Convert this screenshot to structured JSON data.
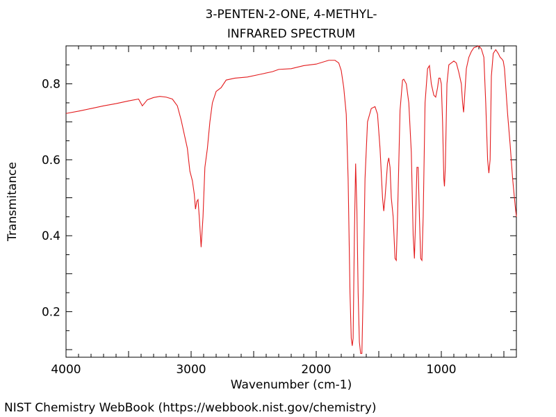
{
  "chart_data": {
    "type": "line",
    "title": "3-PENTEN-2-ONE, 4-METHYL-",
    "subtitle": "INFRARED SPECTRUM",
    "xlabel": "Wavenumber (cm-1)",
    "ylabel": "Transmitance",
    "xlim": [
      4000,
      400
    ],
    "ylim": [
      0.08,
      0.9
    ],
    "x_ticks": [
      4000,
      3000,
      2000,
      1000
    ],
    "y_ticks": [
      0.2,
      0.4,
      0.6,
      0.8
    ],
    "grid": false,
    "series": [
      {
        "color": "#e31a1c",
        "points": [
          [
            4000,
            0.722
          ],
          [
            3900,
            0.728
          ],
          [
            3800,
            0.735
          ],
          [
            3700,
            0.742
          ],
          [
            3600,
            0.748
          ],
          [
            3500,
            0.755
          ],
          [
            3420,
            0.76
          ],
          [
            3390,
            0.742
          ],
          [
            3350,
            0.758
          ],
          [
            3300,
            0.764
          ],
          [
            3250,
            0.767
          ],
          [
            3200,
            0.765
          ],
          [
            3150,
            0.76
          ],
          [
            3110,
            0.742
          ],
          [
            3080,
            0.705
          ],
          [
            3050,
            0.66
          ],
          [
            3030,
            0.63
          ],
          [
            3010,
            0.57
          ],
          [
            2990,
            0.545
          ],
          [
            2975,
            0.51
          ],
          [
            2965,
            0.47
          ],
          [
            2955,
            0.49
          ],
          [
            2945,
            0.495
          ],
          [
            2935,
            0.45
          ],
          [
            2920,
            0.37
          ],
          [
            2905,
            0.45
          ],
          [
            2890,
            0.58
          ],
          [
            2870,
            0.63
          ],
          [
            2850,
            0.7
          ],
          [
            2830,
            0.75
          ],
          [
            2800,
            0.78
          ],
          [
            2760,
            0.79
          ],
          [
            2720,
            0.81
          ],
          [
            2650,
            0.815
          ],
          [
            2550,
            0.818
          ],
          [
            2450,
            0.825
          ],
          [
            2350,
            0.832
          ],
          [
            2300,
            0.838
          ],
          [
            2200,
            0.84
          ],
          [
            2100,
            0.848
          ],
          [
            2000,
            0.852
          ],
          [
            1900,
            0.862
          ],
          [
            1850,
            0.862
          ],
          [
            1820,
            0.855
          ],
          [
            1800,
            0.835
          ],
          [
            1780,
            0.79
          ],
          [
            1760,
            0.72
          ],
          [
            1745,
            0.55
          ],
          [
            1730,
            0.25
          ],
          [
            1720,
            0.13
          ],
          [
            1712,
            0.11
          ],
          [
            1705,
            0.13
          ],
          [
            1695,
            0.4
          ],
          [
            1685,
            0.59
          ],
          [
            1675,
            0.47
          ],
          [
            1665,
            0.25
          ],
          [
            1655,
            0.12
          ],
          [
            1645,
            0.09
          ],
          [
            1635,
            0.09
          ],
          [
            1625,
            0.25
          ],
          [
            1610,
            0.55
          ],
          [
            1590,
            0.7
          ],
          [
            1560,
            0.735
          ],
          [
            1530,
            0.74
          ],
          [
            1510,
            0.72
          ],
          [
            1490,
            0.63
          ],
          [
            1470,
            0.5
          ],
          [
            1460,
            0.465
          ],
          [
            1450,
            0.5
          ],
          [
            1430,
            0.59
          ],
          [
            1420,
            0.605
          ],
          [
            1410,
            0.58
          ],
          [
            1400,
            0.5
          ],
          [
            1385,
            0.45
          ],
          [
            1370,
            0.34
          ],
          [
            1360,
            0.335
          ],
          [
            1350,
            0.45
          ],
          [
            1330,
            0.73
          ],
          [
            1310,
            0.81
          ],
          [
            1300,
            0.812
          ],
          [
            1280,
            0.8
          ],
          [
            1260,
            0.75
          ],
          [
            1240,
            0.62
          ],
          [
            1225,
            0.4
          ],
          [
            1215,
            0.34
          ],
          [
            1205,
            0.45
          ],
          [
            1195,
            0.58
          ],
          [
            1185,
            0.58
          ],
          [
            1175,
            0.45
          ],
          [
            1165,
            0.34
          ],
          [
            1155,
            0.335
          ],
          [
            1145,
            0.45
          ],
          [
            1130,
            0.75
          ],
          [
            1110,
            0.84
          ],
          [
            1095,
            0.848
          ],
          [
            1080,
            0.8
          ],
          [
            1060,
            0.77
          ],
          [
            1045,
            0.765
          ],
          [
            1030,
            0.79
          ],
          [
            1020,
            0.815
          ],
          [
            1010,
            0.815
          ],
          [
            1000,
            0.8
          ],
          [
            990,
            0.7
          ],
          [
            980,
            0.55
          ],
          [
            975,
            0.53
          ],
          [
            968,
            0.58
          ],
          [
            955,
            0.8
          ],
          [
            940,
            0.85
          ],
          [
            920,
            0.855
          ],
          [
            900,
            0.86
          ],
          [
            880,
            0.855
          ],
          [
            860,
            0.83
          ],
          [
            840,
            0.8
          ],
          [
            830,
            0.75
          ],
          [
            822,
            0.725
          ],
          [
            815,
            0.76
          ],
          [
            800,
            0.84
          ],
          [
            780,
            0.87
          ],
          [
            760,
            0.885
          ],
          [
            740,
            0.895
          ],
          [
            700,
            0.9
          ],
          [
            680,
            0.892
          ],
          [
            660,
            0.87
          ],
          [
            645,
            0.75
          ],
          [
            630,
            0.6
          ],
          [
            620,
            0.565
          ],
          [
            610,
            0.6
          ],
          [
            600,
            0.82
          ],
          [
            585,
            0.88
          ],
          [
            565,
            0.89
          ],
          [
            545,
            0.88
          ],
          [
            530,
            0.87
          ],
          [
            515,
            0.865
          ],
          [
            505,
            0.86
          ],
          [
            495,
            0.84
          ],
          [
            470,
            0.72
          ],
          [
            450,
            0.64
          ],
          [
            430,
            0.55
          ],
          [
            410,
            0.48
          ],
          [
            400,
            0.45
          ]
        ]
      }
    ]
  },
  "footer": "NIST Chemistry WebBook (https://webbook.nist.gov/chemistry)"
}
